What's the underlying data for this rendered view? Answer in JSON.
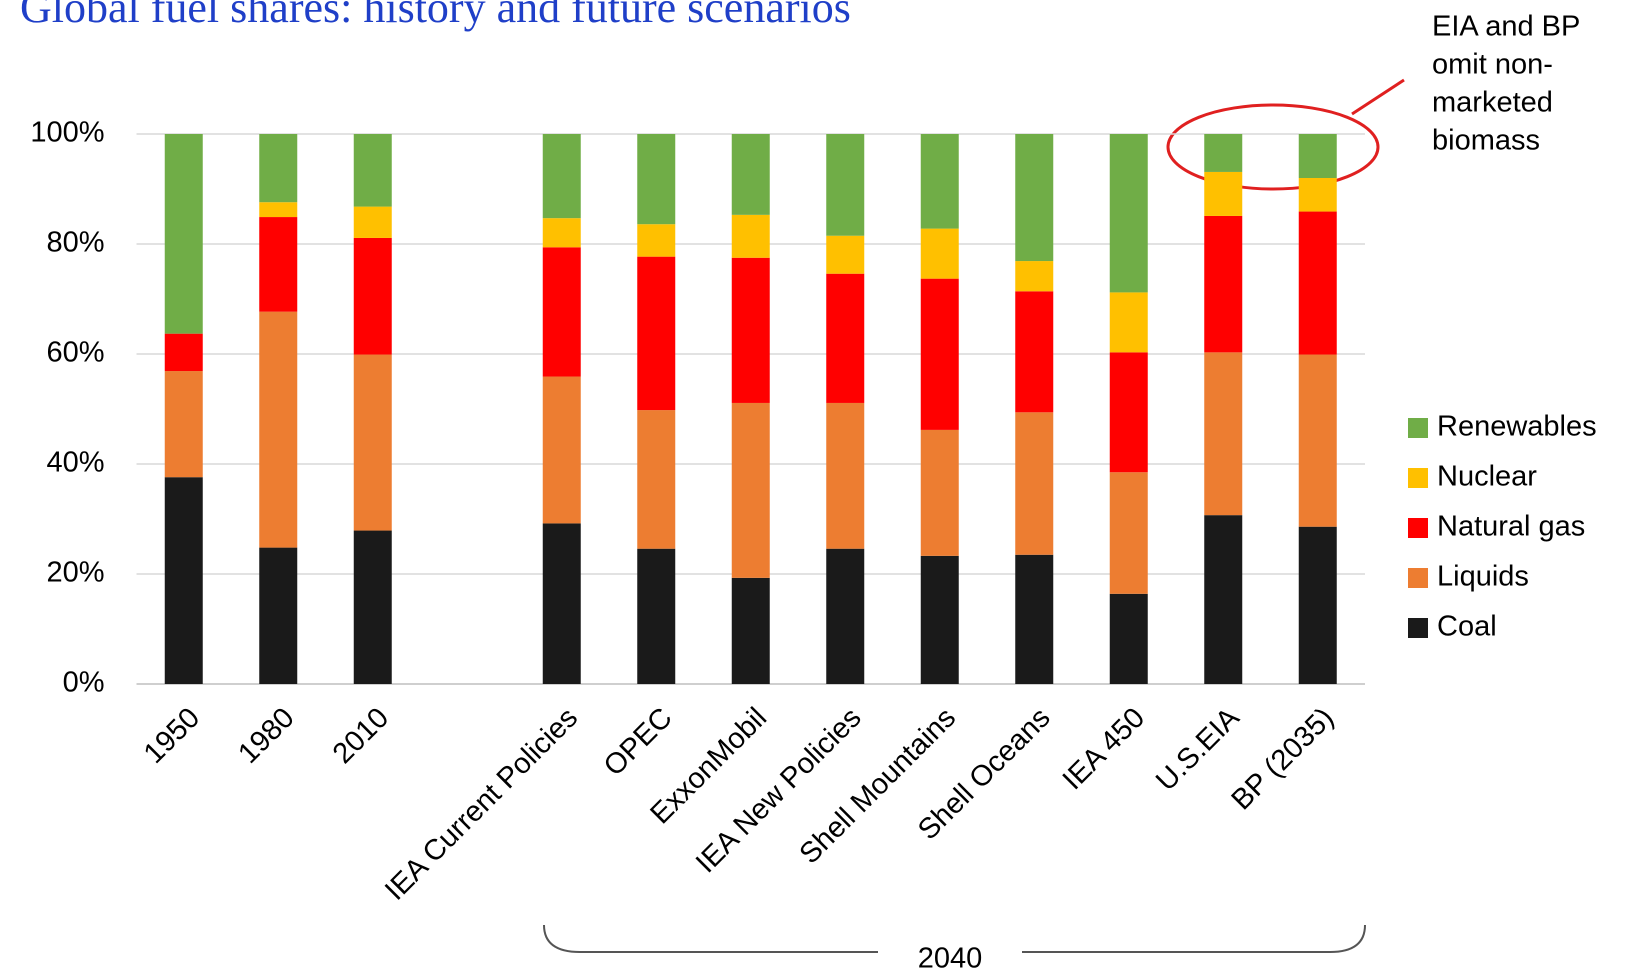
{
  "chart_data": {
    "type": "stacked_bar",
    "title": "Global fuel shares: history and future scenarios",
    "categories": [
      "1950",
      "1980",
      "2010",
      null,
      "IEA Current Policies",
      "OPEC",
      "ExxonMobil",
      "IEA New Policies",
      "Shell Mountains",
      "Shell Oceans",
      "IEA 450",
      "U.S.EIA",
      "BP (2035)"
    ],
    "series": [
      {
        "name": "Coal",
        "color": "#1a1a1a",
        "values": [
          37.6,
          24.8,
          27.9,
          null,
          29.2,
          24.6,
          19.3,
          24.6,
          23.3,
          23.5,
          16.4,
          30.7,
          28.6
        ]
      },
      {
        "name": "Liquids",
        "color": "#ed7d31",
        "values": [
          19.3,
          42.9,
          32,
          null,
          26.7,
          25.2,
          31.8,
          26.5,
          22.9,
          25.9,
          22.1,
          29.6,
          31.3
        ]
      },
      {
        "name": "Natural gas",
        "color": "#ff0000",
        "values": [
          6.8,
          17.2,
          21.2,
          null,
          23.5,
          27.9,
          26.4,
          23.5,
          27.5,
          22,
          21.8,
          24.8,
          26
        ]
      },
      {
        "name": "Nuclear",
        "color": "#ffc000",
        "values": [
          0,
          2.7,
          5.7,
          null,
          5.3,
          5.9,
          7.8,
          6.9,
          9.1,
          5.5,
          10.9,
          8,
          6.1
        ]
      },
      {
        "name": "Renewables",
        "color": "#70ad47",
        "values": [
          36.3,
          12.4,
          13.2,
          null,
          15.3,
          16.4,
          14.7,
          18.5,
          17.2,
          23.1,
          28.8,
          6.9,
          8
        ]
      }
    ],
    "ylim": [
      0,
      100
    ],
    "yticks": [
      {
        "value": 0,
        "label": "0%"
      },
      {
        "value": 20,
        "label": "20%"
      },
      {
        "value": 40,
        "label": "40%"
      },
      {
        "value": 60,
        "label": "60%"
      },
      {
        "value": 80,
        "label": "80%"
      },
      {
        "value": 100,
        "label": "100%"
      }
    ],
    "grid": true,
    "legend": "right",
    "annotation": [
      "EIA and BP",
      "omit non-",
      "marketed",
      "biomass"
    ],
    "group_label": "2040"
  }
}
